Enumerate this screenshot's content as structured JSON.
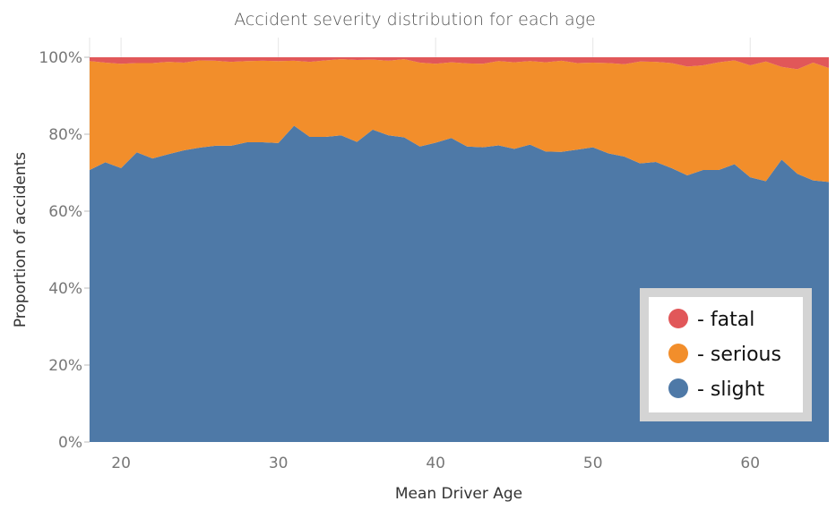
{
  "chart_data": {
    "type": "area",
    "stacked": true,
    "normalized": true,
    "title": "Accident severity distribution for each age",
    "xlabel": "Mean Driver Age",
    "ylabel": "Proportion of accidents",
    "xlim": [
      18,
      65
    ],
    "ylim": [
      0,
      1
    ],
    "x_ticks": [
      20,
      30,
      40,
      50,
      60
    ],
    "y_ticks": [
      0,
      0.2,
      0.4,
      0.6,
      0.8,
      1.0
    ],
    "y_tick_labels": [
      "0%",
      "20%",
      "40%",
      "60%",
      "80%",
      "100%"
    ],
    "grid": "vertical",
    "legend_position": "bottom-right",
    "x": [
      18,
      19,
      20,
      21,
      22,
      23,
      24,
      25,
      26,
      27,
      28,
      29,
      30,
      31,
      32,
      33,
      34,
      35,
      36,
      37,
      38,
      39,
      40,
      41,
      42,
      43,
      44,
      45,
      46,
      47,
      48,
      49,
      50,
      51,
      52,
      53,
      54,
      55,
      56,
      57,
      58,
      59,
      60,
      61,
      62,
      63,
      64,
      65
    ],
    "series": [
      {
        "name": "slight",
        "legend_label": "- slight",
        "color": "#4e79a7",
        "cumulative": [
          0.707,
          0.727,
          0.712,
          0.753,
          0.737,
          0.748,
          0.758,
          0.765,
          0.77,
          0.77,
          0.779,
          0.779,
          0.777,
          0.822,
          0.793,
          0.793,
          0.797,
          0.78,
          0.812,
          0.797,
          0.792,
          0.768,
          0.778,
          0.79,
          0.768,
          0.766,
          0.771,
          0.762,
          0.773,
          0.755,
          0.754,
          0.76,
          0.766,
          0.75,
          0.742,
          0.724,
          0.728,
          0.712,
          0.693,
          0.707,
          0.707,
          0.722,
          0.688,
          0.678,
          0.734,
          0.697,
          0.68,
          0.676
        ]
      },
      {
        "name": "serious",
        "legend_label": "- serious",
        "color": "#f28e2b",
        "cumulative": [
          0.99,
          0.986,
          0.983,
          0.985,
          0.985,
          0.988,
          0.986,
          0.992,
          0.991,
          0.988,
          0.99,
          0.991,
          0.99,
          0.991,
          0.988,
          0.992,
          0.995,
          0.993,
          0.994,
          0.991,
          0.995,
          0.986,
          0.983,
          0.987,
          0.984,
          0.983,
          0.99,
          0.987,
          0.99,
          0.987,
          0.991,
          0.985,
          0.986,
          0.985,
          0.982,
          0.989,
          0.988,
          0.985,
          0.976,
          0.979,
          0.987,
          0.992,
          0.979,
          0.989,
          0.975,
          0.969,
          0.986,
          0.972
        ]
      },
      {
        "name": "fatal",
        "legend_label": "- fatal",
        "color": "#e15759",
        "cumulative": [
          1,
          1,
          1,
          1,
          1,
          1,
          1,
          1,
          1,
          1,
          1,
          1,
          1,
          1,
          1,
          1,
          1,
          1,
          1,
          1,
          1,
          1,
          1,
          1,
          1,
          1,
          1,
          1,
          1,
          1,
          1,
          1,
          1,
          1,
          1,
          1,
          1,
          1,
          1,
          1,
          1,
          1,
          1,
          1,
          1,
          1,
          1,
          1
        ]
      }
    ]
  }
}
